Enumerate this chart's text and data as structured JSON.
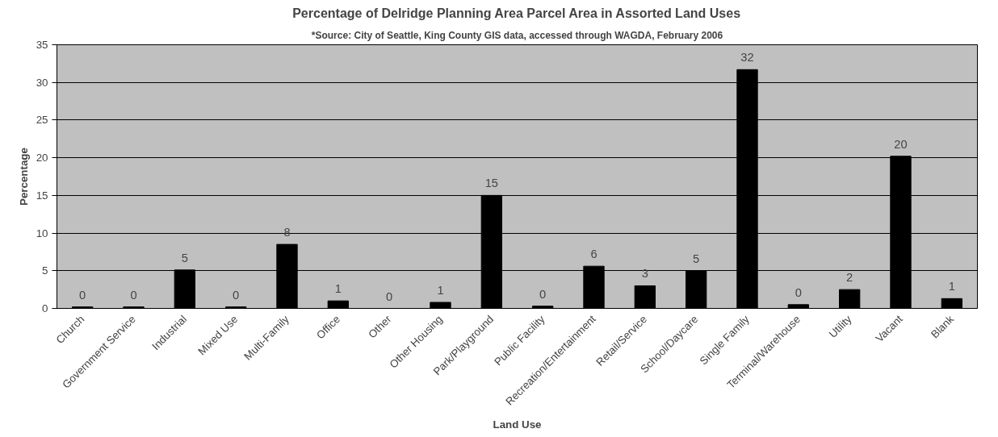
{
  "chart_data": {
    "type": "bar",
    "title": "Percentage of Delridge Planning Area Parcel Area in Assorted Land Uses",
    "subtitle": "*Source: City of Seattle, King County GIS data, accessed through WAGDA, February 2006",
    "xlabel": "Land Use",
    "ylabel": "Percentage",
    "categories": [
      "Church",
      "Government Service",
      "Industrial",
      "Mixed Use",
      "Multi-Family",
      "Office",
      "Other",
      "Other Housing",
      "Park/Playground",
      "Public Facility",
      "Recreation/Entertainment",
      "Retail/Service",
      "School/Daycare",
      "Single Family",
      "Terminal/Warehouse",
      "Utility",
      "Vacant",
      "Blank"
    ],
    "values": [
      0.2,
      0.2,
      5.1,
      0.2,
      8.5,
      1.0,
      0.0,
      0.8,
      15.0,
      0.3,
      5.6,
      3.0,
      5.0,
      31.7,
      0.5,
      2.5,
      20.2,
      1.3
    ],
    "value_labels": [
      "0",
      "0",
      "5",
      "0",
      "8",
      "1",
      "0",
      "1",
      "15",
      "0",
      "6",
      "3",
      "5",
      "32",
      "0",
      "2",
      "20",
      "1"
    ],
    "color": "#000000",
    "ylim": [
      0,
      35
    ],
    "yticks": [
      0,
      5,
      10,
      15,
      20,
      25,
      30,
      35
    ],
    "grid": "y"
  }
}
